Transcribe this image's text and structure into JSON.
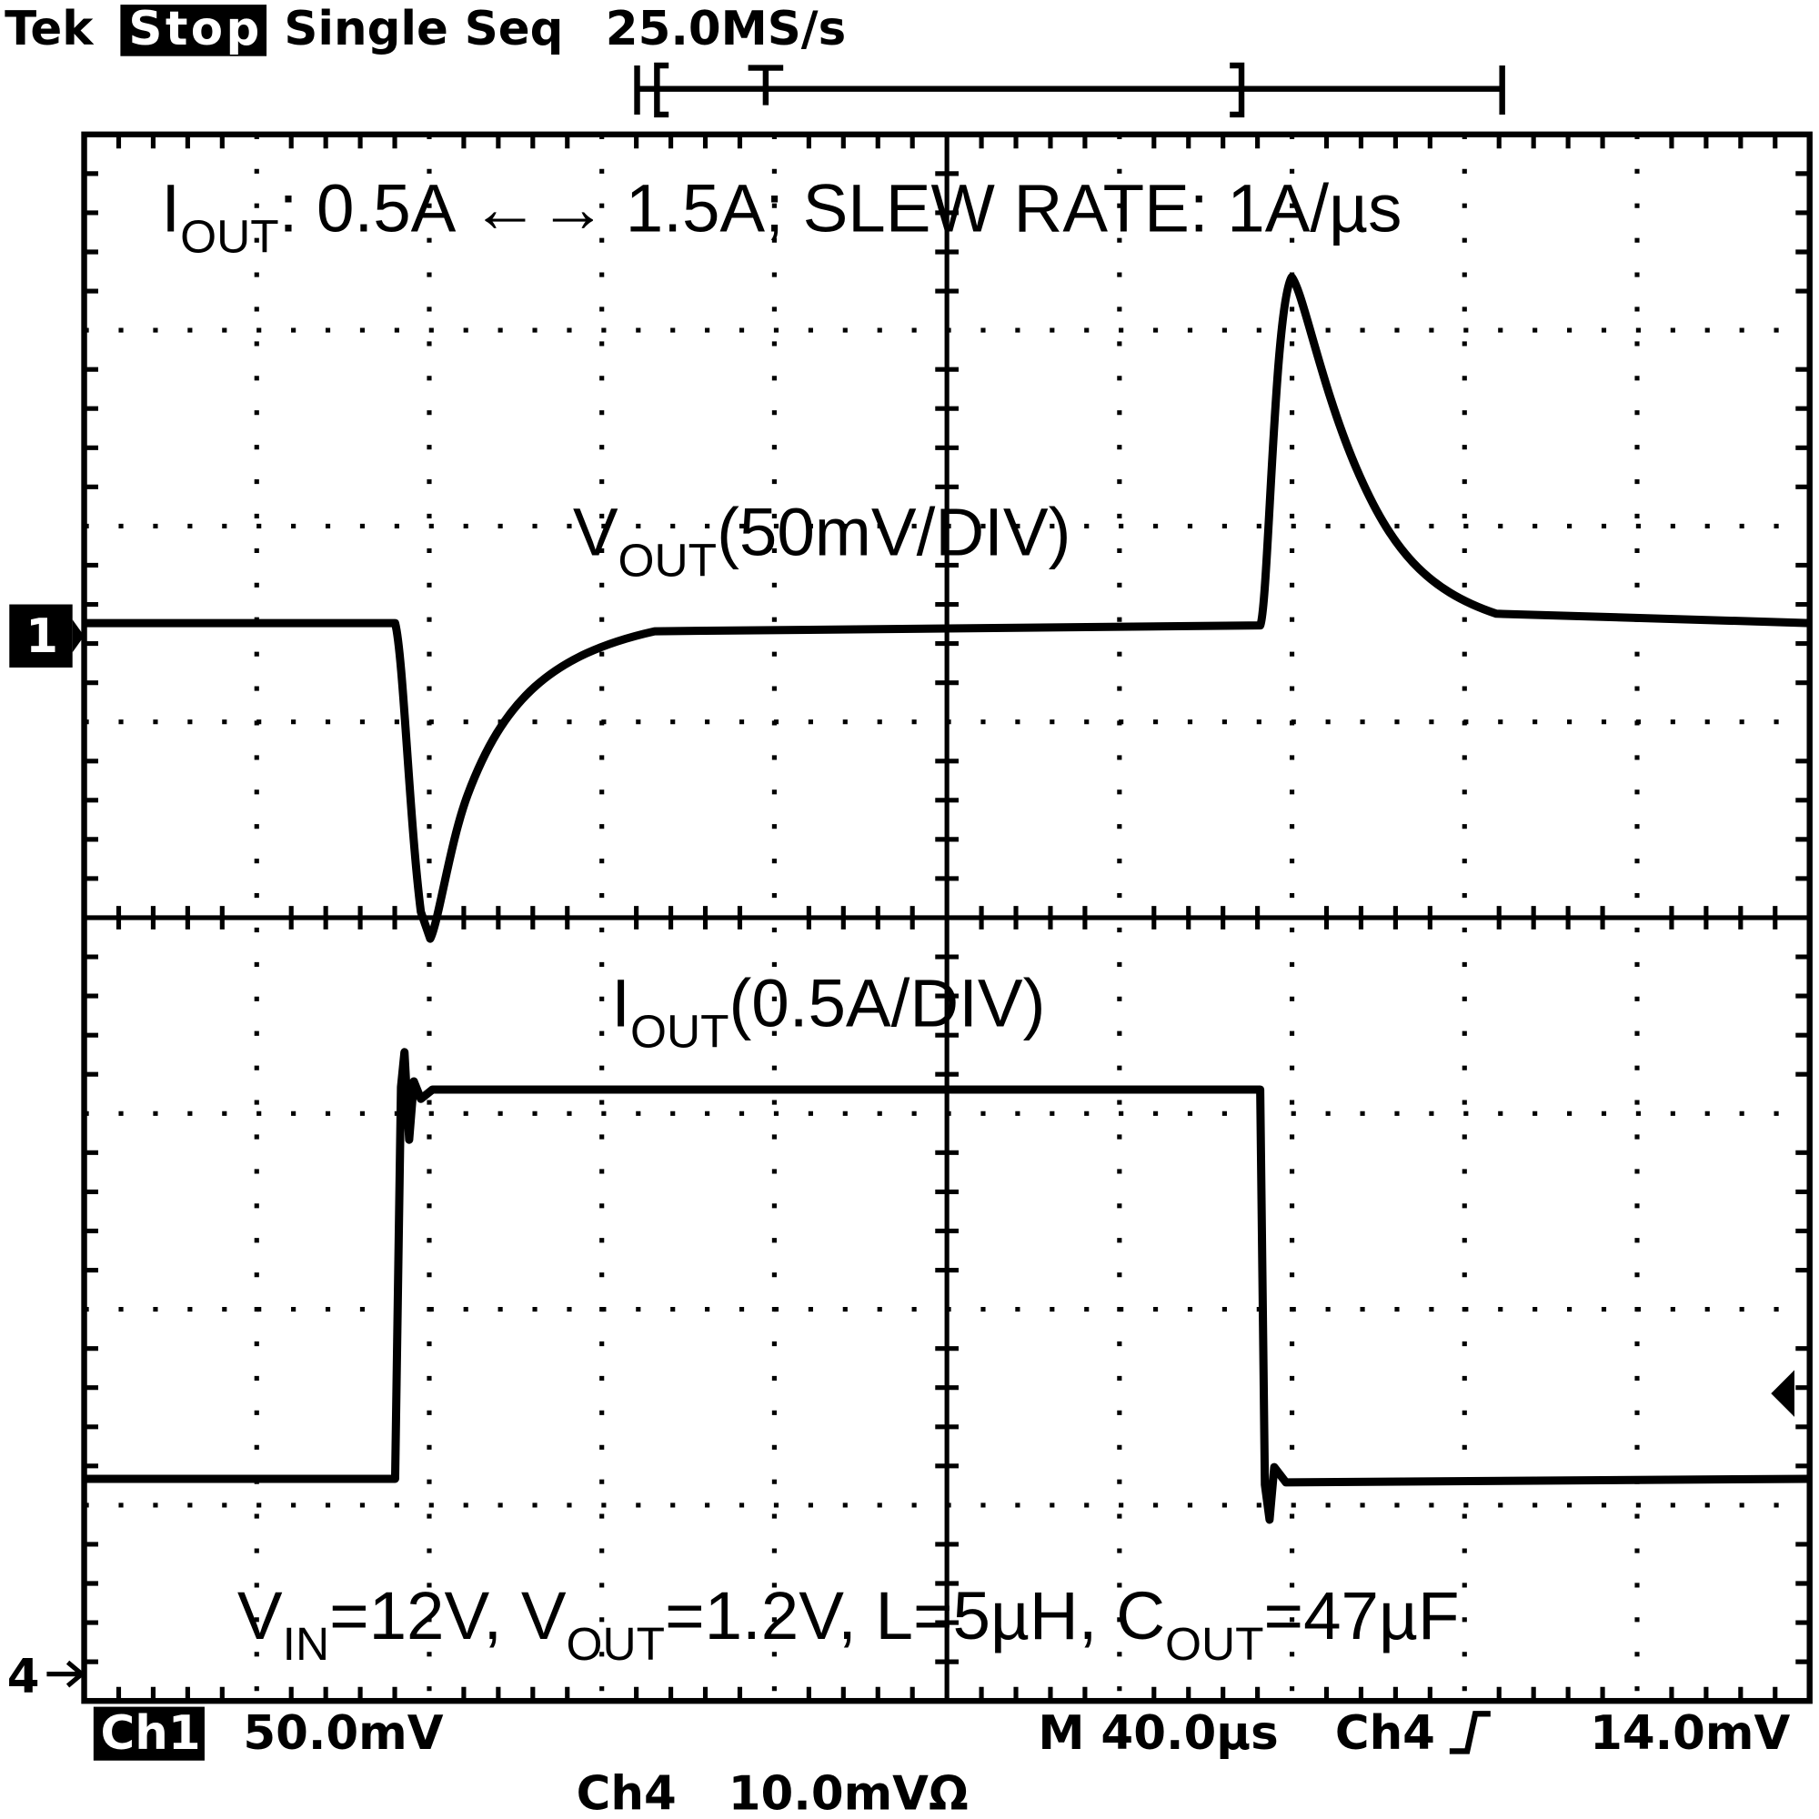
{
  "header": {
    "brand": "Tek",
    "state": "Stop",
    "mode": "Single Seq",
    "rate": "25.0MS/s"
  },
  "annotations": {
    "top": {
      "a": "I",
      "a_sub": "OUT",
      "b": ": 0.5A ←→ 1.5A;  SLEW RATE: 1A/µs"
    },
    "vout": {
      "a": "V",
      "a_sub": "OUT",
      "b": "(50mV/DIV)"
    },
    "iout": {
      "a": "I",
      "a_sub": "OUT",
      "b": "(0.5A/DIV)"
    },
    "conditions": {
      "a": "V",
      "a_sub": "IN",
      "b": "=12V, V",
      "b_sub": "OUT",
      "c": "=1.2V, L=5µH, C",
      "c_sub": "OUT",
      "d": "=47µF"
    }
  },
  "markers": {
    "ch1": "1",
    "ch4": "4"
  },
  "status": {
    "ch1": "Ch1",
    "ch1_scale": "50.0mV",
    "ch4": "Ch4",
    "ch4_scale": "10.0mVΩ",
    "timebase": "M 40.0µs",
    "trigger_source": "Ch4",
    "trigger_level": "14.0mV"
  }
}
